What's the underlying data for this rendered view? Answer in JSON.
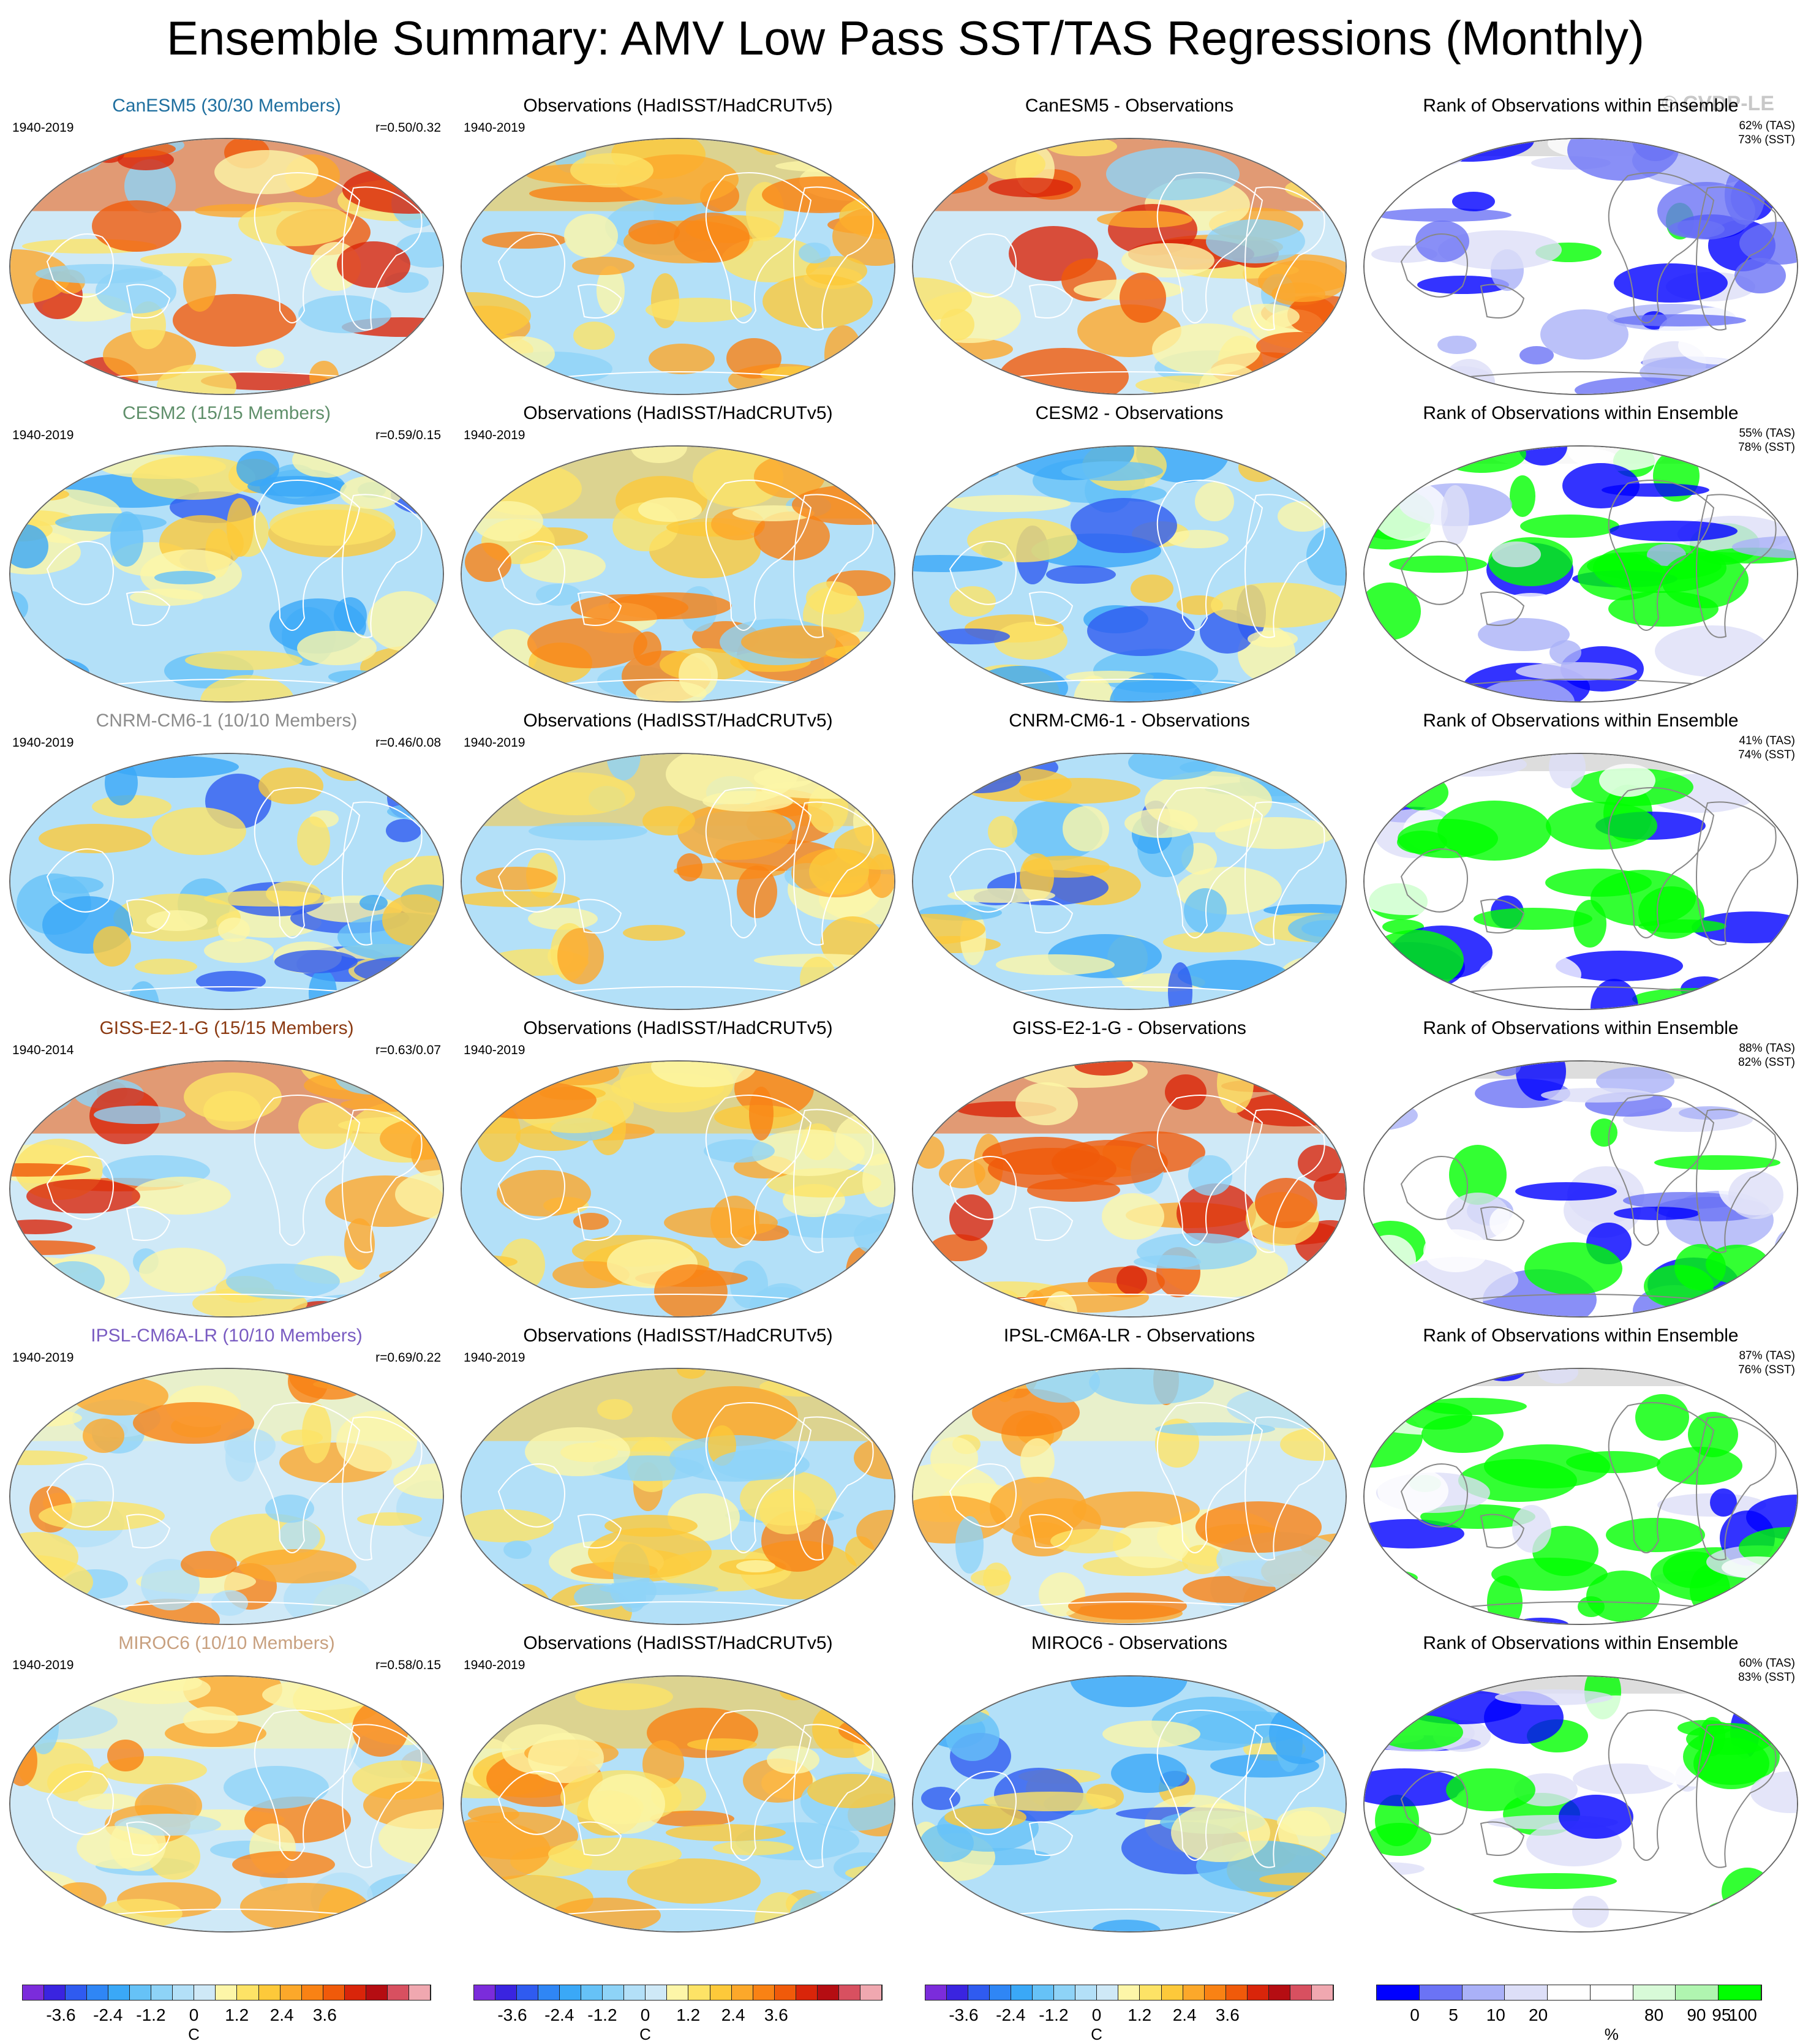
{
  "title": "Ensemble Summary: AMV Low Pass SST/TAS Regressions (Monthly)",
  "watermark": "© CVDP-LE",
  "column_titles": {
    "observations": "Observations (HadISST/HadCRUTv5)",
    "rank": "Rank of Observations within Ensemble"
  },
  "rows": [
    {
      "model": "CanESM5 (30/30 Members)",
      "model_color": "#1f6f9f",
      "model_years": "1940-2019",
      "r": "r=0.50/0.32",
      "obs_years": "1940-2019",
      "diff_title": "CanESM5 - Observations",
      "rank_tas": "62% (TAS)",
      "rank_sst": "73% (SST)",
      "model_tone": "warm-north",
      "diff_tone": "warm-north",
      "rank_tone": "mixed-blue"
    },
    {
      "model": "CESM2 (15/15 Members)",
      "model_color": "#5f8f6a",
      "model_years": "1940-2019",
      "r": "r=0.59/0.15",
      "obs_years": "1940-2019",
      "diff_title": "CESM2 - Observations",
      "rank_tas": "55% (TAS)",
      "rank_sst": "78% (SST)",
      "model_tone": "cool",
      "diff_tone": "cool",
      "rank_tone": "mixed-green"
    },
    {
      "model": "CNRM-CM6-1 (10/10 Members)",
      "model_color": "#8c8c8c",
      "model_years": "1940-2019",
      "r": "r=0.46/0.08",
      "obs_years": "1940-2019",
      "diff_title": "CNRM-CM6-1 - Observations",
      "rank_tas": "41% (TAS)",
      "rank_sst": "74% (SST)",
      "model_tone": "cool",
      "diff_tone": "cool",
      "rank_tone": "green"
    },
    {
      "model": "GISS-E2-1-G (15/15 Members)",
      "model_color": "#8b3a12",
      "model_years": "1940-2014",
      "r": "r=0.63/0.07",
      "obs_years": "1940-2019",
      "diff_title": "GISS-E2-1-G - Observations",
      "rank_tas": "88% (TAS)",
      "rank_sst": "82% (SST)",
      "model_tone": "warm-north",
      "diff_tone": "warm-north",
      "rank_tone": "mixed-blue"
    },
    {
      "model": "IPSL-CM6A-LR (10/10 Members)",
      "model_color": "#7a5cc2",
      "model_years": "1940-2019",
      "r": "r=0.69/0.22",
      "obs_years": "1940-2019",
      "diff_title": "IPSL-CM6A-LR - Observations",
      "rank_tas": "87% (TAS)",
      "rank_sst": "76% (SST)",
      "model_tone": "mild",
      "diff_tone": "mild",
      "rank_tone": "green"
    },
    {
      "model": "MIROC6 (10/10 Members)",
      "model_color": "#c8a07f",
      "model_years": "1940-2019",
      "r": "r=0.58/0.15",
      "obs_years": "1940-2019",
      "diff_title": "MIROC6 - Observations",
      "rank_tas": "60% (TAS)",
      "rank_sst": "83% (SST)",
      "model_tone": "mild",
      "diff_tone": "cool",
      "rank_tone": "green"
    }
  ],
  "colorbars": {
    "temp_colors": [
      "#7b2cdb",
      "#3a24e0",
      "#2f5bf0",
      "#2f86f5",
      "#3aa8f7",
      "#66c2f7",
      "#8ed3f7",
      "#b3e0f8",
      "#cfe9f7",
      "#fdf6a8",
      "#fde366",
      "#fdc93a",
      "#fca82a",
      "#f98214",
      "#f05a0a",
      "#d9250a",
      "#b50d12",
      "#d85060",
      "#f0a8b0"
    ],
    "temp_ticks": [
      "-3.6",
      "-2.4",
      "-1.2",
      "0",
      "1.2",
      "2.4",
      "3.6"
    ],
    "temp_unit": "C",
    "rank_colors": [
      "#0000ff",
      "#6b73f5",
      "#aab1f8",
      "#dddff8",
      "#ffffff",
      "#ffffff",
      "#d8fad8",
      "#b0f5b0",
      "#00ff00"
    ],
    "rank_ticks": [
      "0",
      "5",
      "10",
      "20",
      "80",
      "90",
      "95",
      "100"
    ],
    "rank_unit": "%"
  }
}
